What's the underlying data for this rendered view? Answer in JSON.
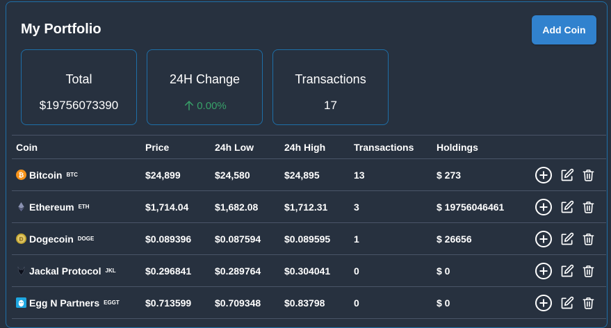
{
  "header": {
    "title": "My Portfolio",
    "add_button_label": "Add Coin"
  },
  "summary": {
    "total_label": "Total",
    "total_value": "$19756073390",
    "change_label": "24H Change",
    "change_value": "0.00%",
    "transactions_label": "Transactions",
    "transactions_value": "17"
  },
  "table": {
    "headers": [
      "Coin",
      "Price",
      "24h Low",
      "24h High",
      "Transactions",
      "Holdings"
    ],
    "rows": [
      {
        "name": "Bitcoin",
        "symbol": "BTC",
        "price": "$24,899",
        "low": "$24,580",
        "high": "$24,895",
        "transactions": "13",
        "holdings": "$ 273",
        "icon": "bitcoin-icon"
      },
      {
        "name": "Ethereum",
        "symbol": "ETH",
        "price": "$1,714.04",
        "low": "$1,682.08",
        "high": "$1,712.31",
        "transactions": "3",
        "holdings": "$ 19756046461",
        "icon": "ethereum-icon"
      },
      {
        "name": "Dogecoin",
        "symbol": "DOGE",
        "price": "$0.089396",
        "low": "$0.087594",
        "high": "$0.089595",
        "transactions": "1",
        "holdings": "$ 26656",
        "icon": "dogecoin-icon"
      },
      {
        "name": "Jackal Protocol",
        "symbol": "JKL",
        "price": "$0.296841",
        "low": "$0.289764",
        "high": "$0.304041",
        "transactions": "0",
        "holdings": "$ 0",
        "icon": "jackal-icon"
      },
      {
        "name": "Egg N Partners",
        "symbol": "EGGT",
        "price": "$0.713599",
        "low": "$0.709348",
        "high": "$0.83798",
        "transactions": "0",
        "holdings": "$ 0",
        "icon": "egg-icon"
      }
    ]
  },
  "colors": {
    "background": "#27313f",
    "accent": "#3182ce",
    "positive": "#38a169",
    "border": "#1e6fa8"
  }
}
